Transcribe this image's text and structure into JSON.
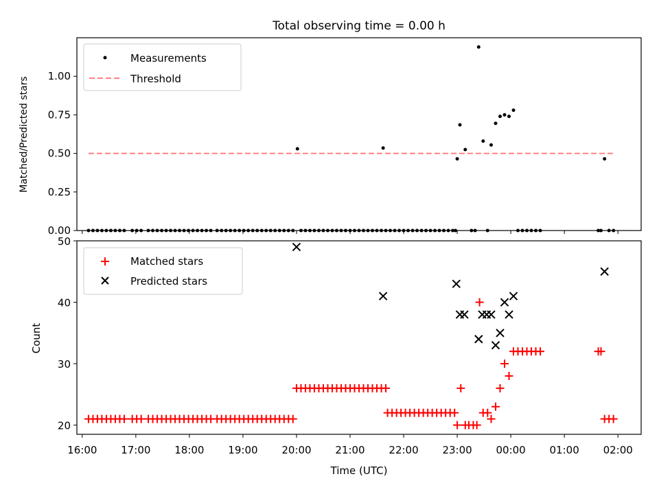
{
  "chart_data": [
    {
      "type": "scatter",
      "title": "Total observing time = 0.00 h",
      "xlabel": "",
      "ylabel": "Matched/Predicted stars",
      "ylim": [
        0,
        1.25
      ],
      "xlim": [
        "15:54",
        "02:26"
      ],
      "yticks": [
        "0.00",
        "0.25",
        "0.50",
        "0.75",
        "1.00"
      ],
      "legend": {
        "placement": "top-left",
        "entries": [
          "Measurements",
          "Threshold"
        ]
      },
      "colors": {
        "Measurements": "#000000",
        "Threshold": "#ff8080"
      },
      "threshold": {
        "name": "Threshold",
        "y": 0.5,
        "x_start": "16:07",
        "x_end": "01:57"
      },
      "series": [
        {
          "name": "Measurements",
          "points": [
            [
              "16:07",
              0
            ],
            [
              "16:12",
              0
            ],
            [
              "16:17",
              0
            ],
            [
              "16:22",
              0
            ],
            [
              "16:27",
              0
            ],
            [
              "16:32",
              0
            ],
            [
              "16:37",
              0
            ],
            [
              "16:42",
              0
            ],
            [
              "16:47",
              0
            ],
            [
              "16:56",
              0
            ],
            [
              "17:01",
              0
            ],
            [
              "17:06",
              0
            ],
            [
              "17:14",
              0
            ],
            [
              "17:19",
              0
            ],
            [
              "17:24",
              0
            ],
            [
              "17:29",
              0
            ],
            [
              "17:34",
              0
            ],
            [
              "17:39",
              0
            ],
            [
              "17:44",
              0
            ],
            [
              "17:49",
              0
            ],
            [
              "17:54",
              0
            ],
            [
              "17:59",
              0
            ],
            [
              "18:04",
              0
            ],
            [
              "18:09",
              0
            ],
            [
              "18:14",
              0
            ],
            [
              "18:19",
              0
            ],
            [
              "18:24",
              0
            ],
            [
              "18:31",
              0
            ],
            [
              "18:36",
              0
            ],
            [
              "18:41",
              0
            ],
            [
              "18:46",
              0
            ],
            [
              "18:51",
              0
            ],
            [
              "18:56",
              0
            ],
            [
              "19:01",
              0
            ],
            [
              "19:06",
              0
            ],
            [
              "19:11",
              0
            ],
            [
              "19:16",
              0
            ],
            [
              "19:21",
              0
            ],
            [
              "19:26",
              0
            ],
            [
              "19:31",
              0
            ],
            [
              "19:36",
              0
            ],
            [
              "19:41",
              0
            ],
            [
              "19:46",
              0
            ],
            [
              "19:51",
              0
            ],
            [
              "19:56",
              0
            ],
            [
              "20:01",
              0.53
            ],
            [
              "20:05",
              0
            ],
            [
              "20:10",
              0
            ],
            [
              "20:15",
              0
            ],
            [
              "20:20",
              0
            ],
            [
              "20:25",
              0
            ],
            [
              "20:30",
              0
            ],
            [
              "20:35",
              0
            ],
            [
              "20:40",
              0
            ],
            [
              "20:45",
              0
            ],
            [
              "20:50",
              0
            ],
            [
              "20:55",
              0
            ],
            [
              "21:00",
              0
            ],
            [
              "21:05",
              0
            ],
            [
              "21:10",
              0
            ],
            [
              "21:15",
              0
            ],
            [
              "21:20",
              0
            ],
            [
              "21:25",
              0
            ],
            [
              "21:30",
              0
            ],
            [
              "21:35",
              0
            ],
            [
              "21:40",
              0
            ],
            [
              "21:45",
              0
            ],
            [
              "21:50",
              0
            ],
            [
              "21:55",
              0
            ],
            [
              "21:37",
              0.535
            ],
            [
              "22:00",
              0
            ],
            [
              "22:05",
              0
            ],
            [
              "22:10",
              0
            ],
            [
              "22:15",
              0
            ],
            [
              "22:20",
              0
            ],
            [
              "22:25",
              0
            ],
            [
              "22:30",
              0
            ],
            [
              "22:35",
              0
            ],
            [
              "22:40",
              0
            ],
            [
              "22:45",
              0
            ],
            [
              "22:50",
              0
            ],
            [
              "22:55",
              0
            ],
            [
              "22:58",
              0
            ],
            [
              "23:00",
              0.465
            ],
            [
              "23:03",
              0.685
            ],
            [
              "23:09",
              0.525
            ],
            [
              "23:16",
              0
            ],
            [
              "23:20",
              0
            ],
            [
              "23:24",
              1.19
            ],
            [
              "23:29",
              0.58
            ],
            [
              "23:34",
              0
            ],
            [
              "23:38",
              0.555
            ],
            [
              "23:43",
              0.695
            ],
            [
              "23:48",
              0.74
            ],
            [
              "23:53",
              0.75
            ],
            [
              "23:58",
              0.74
            ],
            [
              "00:03",
              0.78
            ],
            [
              "00:08",
              0
            ],
            [
              "00:13",
              0
            ],
            [
              "00:18",
              0
            ],
            [
              "00:23",
              0
            ],
            [
              "00:28",
              0
            ],
            [
              "00:33",
              0
            ],
            [
              "01:38",
              0
            ],
            [
              "01:41",
              0
            ],
            [
              "01:45",
              0.465
            ],
            [
              "01:50",
              0
            ],
            [
              "01:55",
              0
            ]
          ]
        }
      ]
    },
    {
      "type": "scatter",
      "title": "",
      "xlabel": "Time (UTC)",
      "ylabel": "Count",
      "ylim": [
        18.5,
        50
      ],
      "xlim": [
        "15:54",
        "02:26"
      ],
      "yticks": [
        "20",
        "30",
        "40",
        "50"
      ],
      "xticks": [
        "16:00",
        "17:00",
        "18:00",
        "19:00",
        "20:00",
        "21:00",
        "22:00",
        "23:00",
        "00:00",
        "01:00",
        "02:00"
      ],
      "legend": {
        "placement": "top-left",
        "entries": [
          "Matched stars",
          "Predicted stars"
        ]
      },
      "colors": {
        "Matched stars": "#ff0000",
        "Predicted stars": "#000000"
      },
      "series": [
        {
          "name": "Matched stars",
          "points": [
            [
              "16:07",
              21
            ],
            [
              "16:12",
              21
            ],
            [
              "16:17",
              21
            ],
            [
              "16:22",
              21
            ],
            [
              "16:27",
              21
            ],
            [
              "16:32",
              21
            ],
            [
              "16:37",
              21
            ],
            [
              "16:42",
              21
            ],
            [
              "16:47",
              21
            ],
            [
              "16:56",
              21
            ],
            [
              "17:01",
              21
            ],
            [
              "17:06",
              21
            ],
            [
              "17:14",
              21
            ],
            [
              "17:19",
              21
            ],
            [
              "17:24",
              21
            ],
            [
              "17:29",
              21
            ],
            [
              "17:34",
              21
            ],
            [
              "17:39",
              21
            ],
            [
              "17:44",
              21
            ],
            [
              "17:49",
              21
            ],
            [
              "17:54",
              21
            ],
            [
              "17:59",
              21
            ],
            [
              "18:04",
              21
            ],
            [
              "18:09",
              21
            ],
            [
              "18:14",
              21
            ],
            [
              "18:19",
              21
            ],
            [
              "18:24",
              21
            ],
            [
              "18:31",
              21
            ],
            [
              "18:36",
              21
            ],
            [
              "18:41",
              21
            ],
            [
              "18:46",
              21
            ],
            [
              "18:51",
              21
            ],
            [
              "18:56",
              21
            ],
            [
              "19:01",
              21
            ],
            [
              "19:06",
              21
            ],
            [
              "19:11",
              21
            ],
            [
              "19:16",
              21
            ],
            [
              "19:21",
              21
            ],
            [
              "19:26",
              21
            ],
            [
              "19:31",
              21
            ],
            [
              "19:36",
              21
            ],
            [
              "19:41",
              21
            ],
            [
              "19:46",
              21
            ],
            [
              "19:51",
              21
            ],
            [
              "19:56",
              21
            ],
            [
              "20:00",
              26
            ],
            [
              "20:05",
              26
            ],
            [
              "20:10",
              26
            ],
            [
              "20:15",
              26
            ],
            [
              "20:20",
              26
            ],
            [
              "20:25",
              26
            ],
            [
              "20:30",
              26
            ],
            [
              "20:35",
              26
            ],
            [
              "20:40",
              26
            ],
            [
              "20:45",
              26
            ],
            [
              "20:50",
              26
            ],
            [
              "20:55",
              26
            ],
            [
              "21:00",
              26
            ],
            [
              "21:05",
              26
            ],
            [
              "21:10",
              26
            ],
            [
              "21:15",
              26
            ],
            [
              "21:20",
              26
            ],
            [
              "21:25",
              26
            ],
            [
              "21:30",
              26
            ],
            [
              "21:35",
              26
            ],
            [
              "21:40",
              26
            ],
            [
              "21:42",
              22
            ],
            [
              "21:47",
              22
            ],
            [
              "21:52",
              22
            ],
            [
              "21:57",
              22
            ],
            [
              "22:02",
              22
            ],
            [
              "22:07",
              22
            ],
            [
              "22:12",
              22
            ],
            [
              "22:17",
              22
            ],
            [
              "22:22",
              22
            ],
            [
              "22:27",
              22
            ],
            [
              "22:32",
              22
            ],
            [
              "22:37",
              22
            ],
            [
              "22:42",
              22
            ],
            [
              "22:47",
              22
            ],
            [
              "22:52",
              22
            ],
            [
              "22:57",
              22
            ],
            [
              "23:00",
              20
            ],
            [
              "23:04",
              26
            ],
            [
              "23:09",
              20
            ],
            [
              "23:13",
              20
            ],
            [
              "23:18",
              20
            ],
            [
              "23:22",
              20
            ],
            [
              "23:25",
              40
            ],
            [
              "23:29",
              22
            ],
            [
              "23:34",
              22
            ],
            [
              "23:38",
              21
            ],
            [
              "23:43",
              23
            ],
            [
              "23:48",
              26
            ],
            [
              "23:53",
              30
            ],
            [
              "23:58",
              28
            ],
            [
              "00:03",
              32
            ],
            [
              "00:08",
              32
            ],
            [
              "00:13",
              32
            ],
            [
              "00:18",
              32
            ],
            [
              "00:23",
              32
            ],
            [
              "00:28",
              32
            ],
            [
              "00:33",
              32
            ],
            [
              "01:38",
              32
            ],
            [
              "01:41",
              32
            ],
            [
              "01:45",
              21
            ],
            [
              "01:50",
              21
            ],
            [
              "01:55",
              21
            ]
          ]
        },
        {
          "name": "Predicted stars",
          "points": [
            [
              "20:00",
              49
            ],
            [
              "21:37",
              41
            ],
            [
              "22:59",
              43
            ],
            [
              "23:03",
              38
            ],
            [
              "23:08",
              38
            ],
            [
              "23:24",
              34
            ],
            [
              "23:28",
              38
            ],
            [
              "23:33",
              38
            ],
            [
              "23:38",
              38
            ],
            [
              "23:43",
              33
            ],
            [
              "23:48",
              35
            ],
            [
              "23:53",
              40
            ],
            [
              "23:58",
              38
            ],
            [
              "00:03",
              41
            ],
            [
              "01:45",
              45
            ]
          ]
        }
      ]
    }
  ]
}
